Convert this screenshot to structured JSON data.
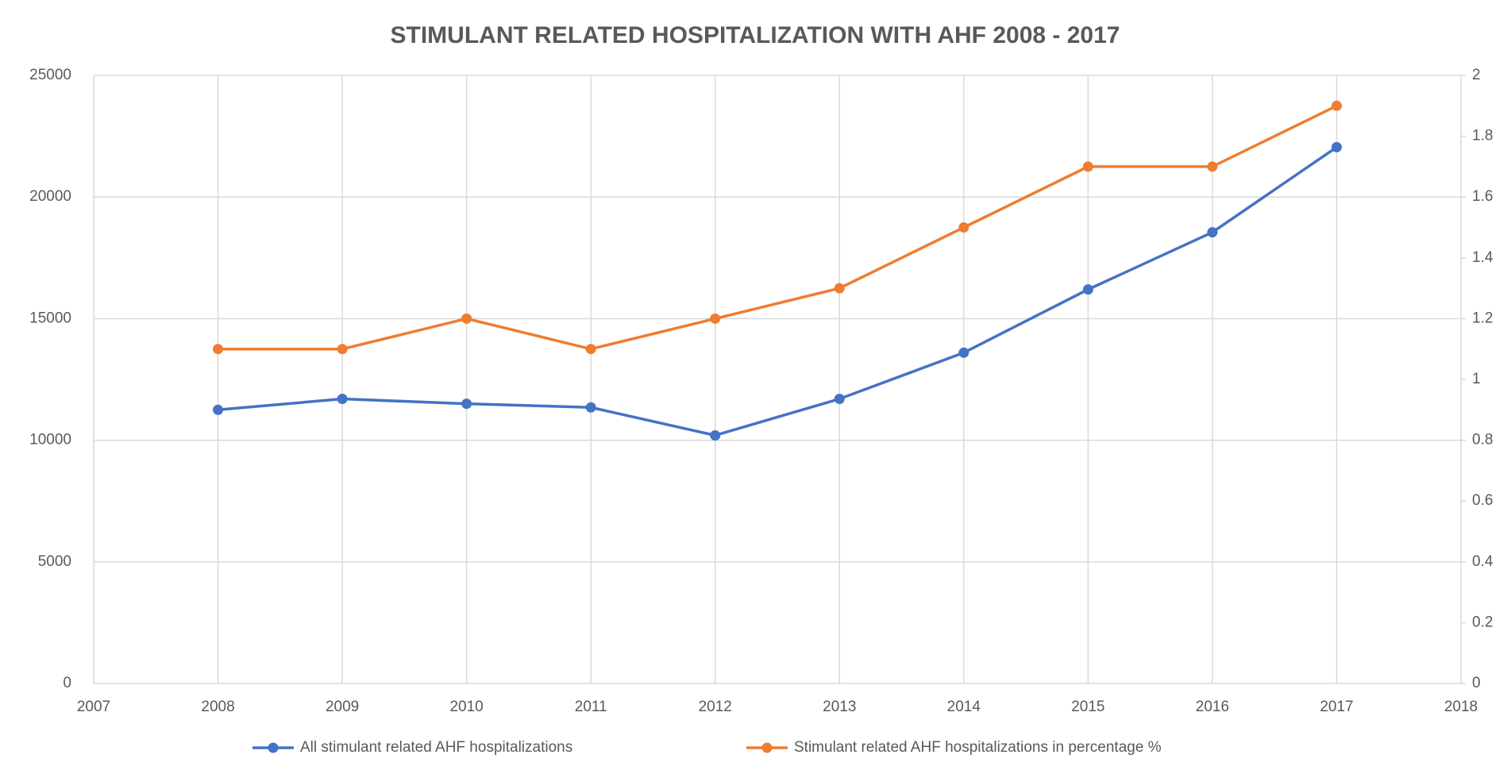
{
  "chart_data": {
    "type": "line",
    "title": "STIMULANT RELATED HOSPITALIZATION WITH AHF 2008 - 2017",
    "x": [
      2008,
      2009,
      2010,
      2011,
      2012,
      2013,
      2014,
      2015,
      2016,
      2017
    ],
    "series": [
      {
        "name": "All stimulant related AHF hospitalizations",
        "color": "#4472c4",
        "values": [
          11250,
          11700,
          11500,
          11350,
          10200,
          11700,
          13600,
          16200,
          18550,
          22050
        ]
      },
      {
        "name": "Stimulant related AHF hospitalizations in percentage %",
        "color": "#ed7d31",
        "axis": "y2",
        "values": [
          1.1,
          1.1,
          1.2,
          1.1,
          1.2,
          1.3,
          1.5,
          1.7,
          1.7,
          1.9
        ]
      }
    ],
    "xlim": [
      2007,
      2018
    ],
    "xticks": [
      2007,
      2008,
      2009,
      2010,
      2011,
      2012,
      2013,
      2014,
      2015,
      2016,
      2017,
      2018
    ],
    "ylim": [
      0,
      25000
    ],
    "yticks": [
      0,
      5000,
      10000,
      15000,
      20000,
      25000
    ],
    "y2lim": [
      0,
      2
    ],
    "y2ticks": [
      0,
      0.2,
      0.4,
      0.6,
      0.8,
      1,
      1.2,
      1.4,
      1.6,
      1.8,
      2
    ],
    "grid": true,
    "legend": "bottom"
  }
}
